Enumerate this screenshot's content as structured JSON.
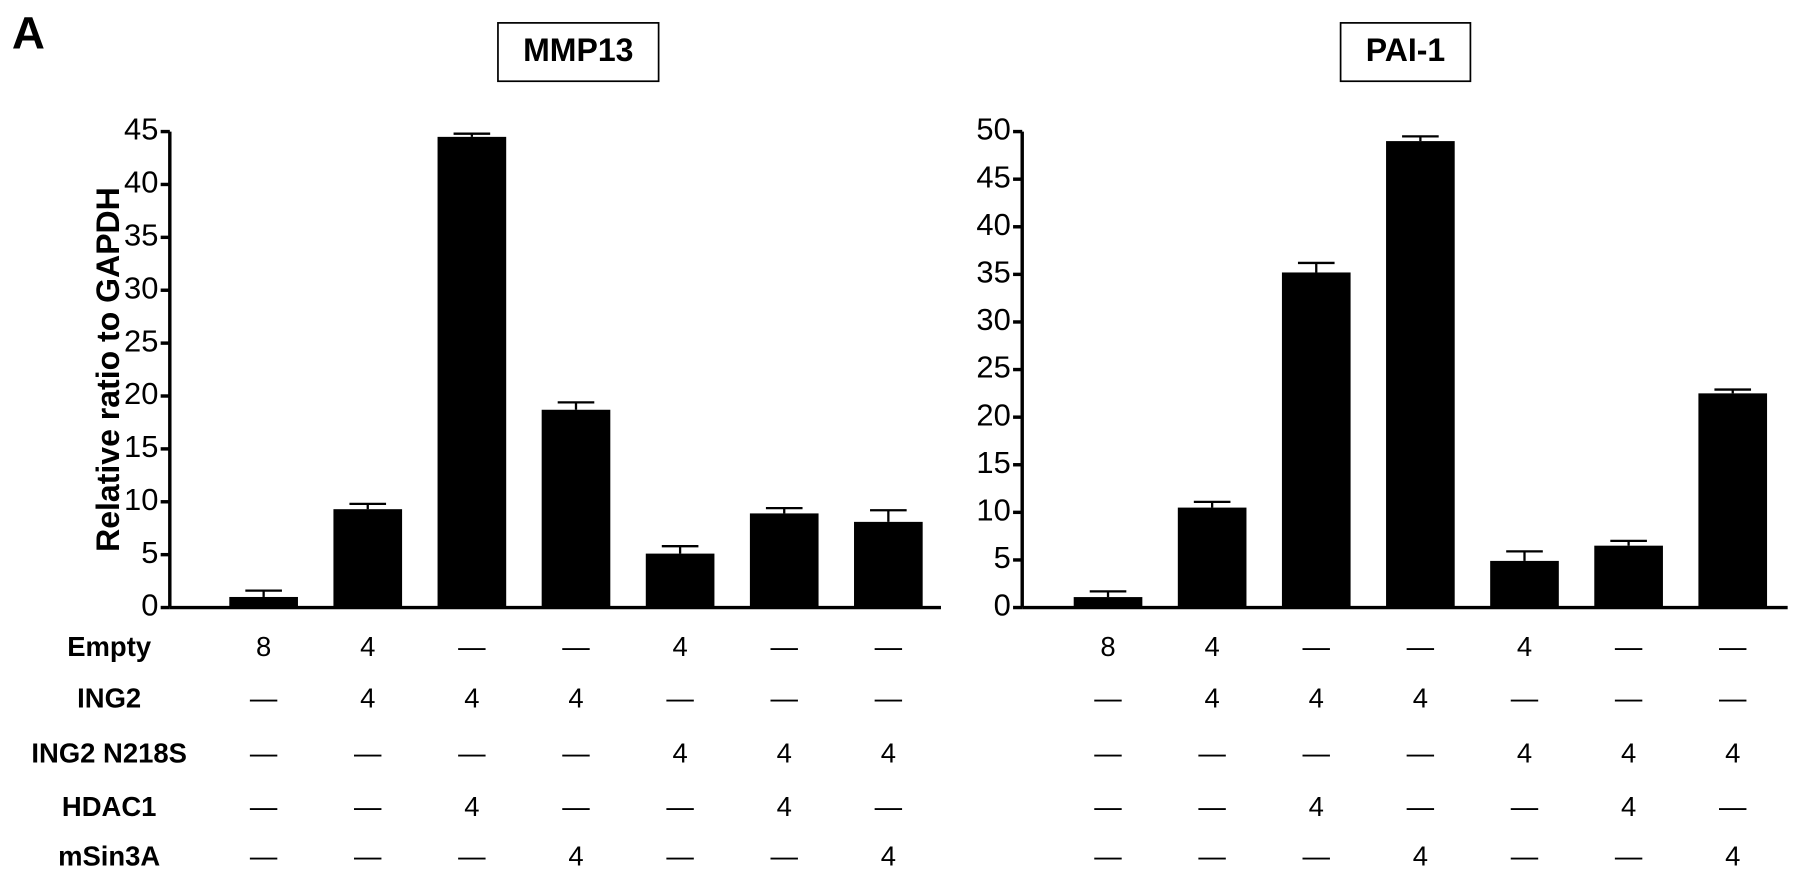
{
  "panel_label": "A",
  "condition_labels": [
    "Empty",
    "ING2",
    "ING2 N218S",
    "HDAC1",
    "mSin3A"
  ],
  "chart_data": [
    {
      "type": "bar",
      "title": "MMP13",
      "y_label": "Relative ratio to GAPDH",
      "categories": [
        null,
        null,
        null,
        null,
        null,
        null,
        null
      ],
      "values": [
        1.0,
        9.3,
        44.5,
        18.7,
        5.1,
        8.9,
        8.1
      ],
      "errors": [
        0.6,
        0.5,
        0.3,
        0.7,
        0.7,
        0.5,
        1.1
      ],
      "color": "#000000",
      "ylim": [
        0,
        45
      ],
      "yticks": [
        0,
        5,
        10,
        15,
        20,
        25,
        30,
        35,
        40,
        45
      ],
      "conditions": [
        [
          "8",
          "4",
          "—",
          "—",
          "4",
          "—",
          "—"
        ],
        [
          "—",
          "4",
          "4",
          "4",
          "—",
          "—",
          "—"
        ],
        [
          "—",
          "—",
          "—",
          "—",
          "4",
          "4",
          "4"
        ],
        [
          "—",
          "—",
          "4",
          "—",
          "—",
          "4",
          "—"
        ],
        [
          "—",
          "—",
          "—",
          "4",
          "—",
          "—",
          "4"
        ]
      ]
    },
    {
      "type": "bar",
      "title": "PAI-1",
      "categories": [
        null,
        null,
        null,
        null,
        null,
        null,
        null
      ],
      "values": [
        1.1,
        10.5,
        35.2,
        49.0,
        4.9,
        6.5,
        22.5
      ],
      "errors": [
        0.6,
        0.6,
        1.0,
        0.5,
        1.0,
        0.5,
        0.4
      ],
      "color": "#000000",
      "ylim": [
        0,
        50
      ],
      "yticks": [
        0,
        5,
        10,
        15,
        20,
        25,
        30,
        35,
        40,
        45,
        50
      ],
      "conditions": [
        [
          "8",
          "4",
          "—",
          "—",
          "4",
          "—",
          "—"
        ],
        [
          "—",
          "4",
          "4",
          "4",
          "—",
          "—",
          "—"
        ],
        [
          "—",
          "—",
          "—",
          "—",
          "4",
          "4",
          "4"
        ],
        [
          "—",
          "—",
          "4",
          "—",
          "—",
          "4",
          "—"
        ],
        [
          "—",
          "—",
          "—",
          "4",
          "—",
          "—",
          "4"
        ]
      ]
    }
  ]
}
